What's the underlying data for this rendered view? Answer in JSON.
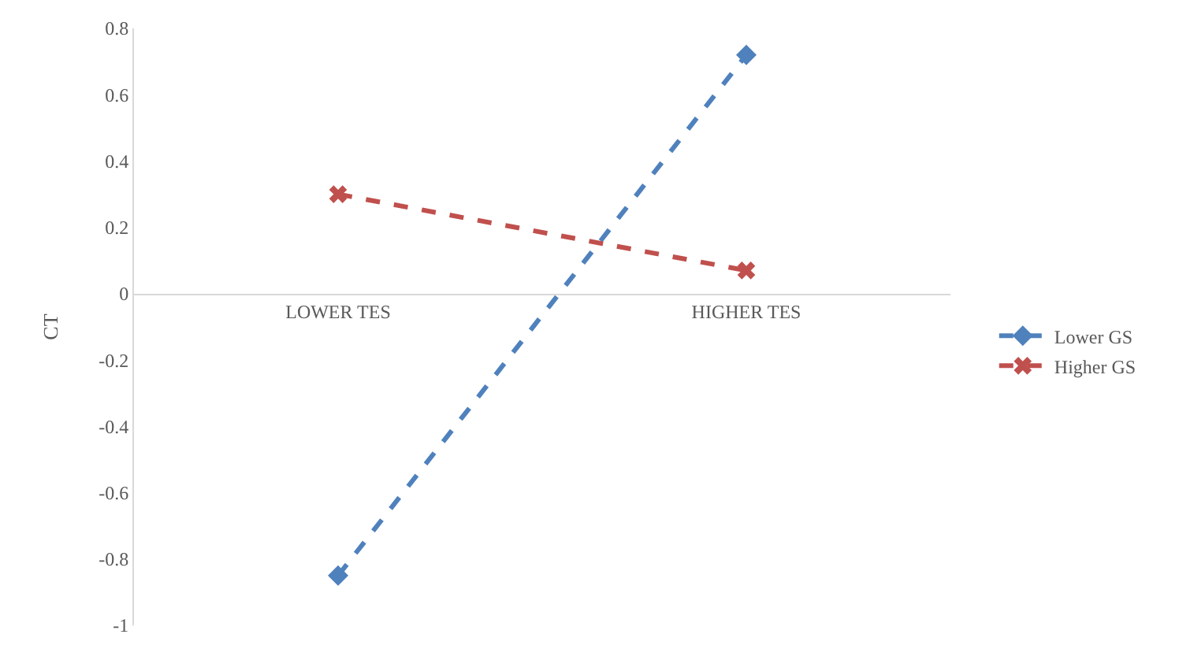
{
  "chart_data": {
    "type": "line",
    "categories": [
      "LOWER TES",
      "HIGHER TES"
    ],
    "series": [
      {
        "name": "Lower GS",
        "color": "#4f81bd",
        "values": [
          -0.85,
          0.72
        ],
        "marker": "diamond",
        "line_style": "dashed"
      },
      {
        "name": "Higher GS",
        "color": "#c0504d",
        "values": [
          0.3,
          0.07
        ],
        "marker": "cross",
        "line_style": "dashed"
      }
    ],
    "ylabel": "CT",
    "ylim": [
      -1,
      0.8
    ],
    "yticks": [
      -1,
      -0.8,
      -0.6,
      -0.4,
      -0.2,
      0,
      0.2,
      0.4,
      0.6,
      0.8
    ],
    "grid": false,
    "legend": "right"
  }
}
